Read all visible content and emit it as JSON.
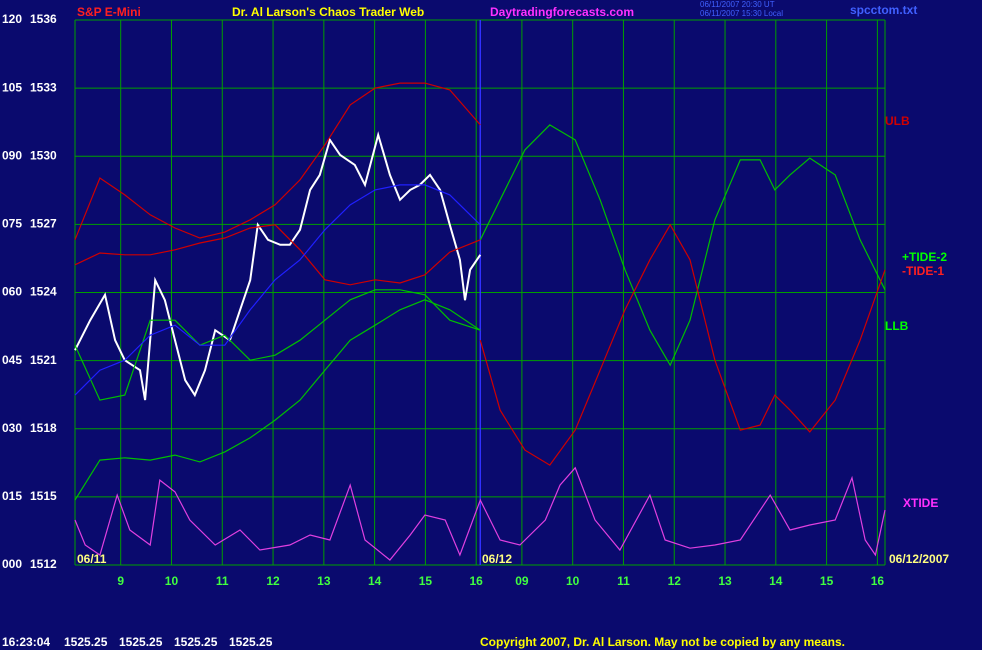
{
  "chart_data": {
    "type": "line",
    "title": "Dr. Al Larson's Chaos Trader Web",
    "instrument": "S&P E-Mini",
    "website": "Daytradingforecasts.com",
    "timestamps": [
      "06/11/2007 20:30 UT",
      "06/11/2007 15:30 Local"
    ],
    "file": "spcctom.txt",
    "day_labels": [
      "06/11",
      "06/12",
      "06/12/2007"
    ],
    "session_break": 16.08,
    "xlim": [
      8.1,
      24.05
    ],
    "xticks": [
      9,
      10,
      11,
      12,
      13,
      14,
      15,
      16,
      {
        "value": 16.9,
        "label": "09"
      },
      {
        "value": 17.9,
        "label": "10"
      },
      {
        "value": 18.9,
        "label": "11"
      },
      {
        "value": 19.9,
        "label": "12"
      },
      {
        "value": 20.9,
        "label": "13"
      },
      {
        "value": 21.9,
        "label": "14"
      },
      {
        "value": 22.9,
        "label": "15"
      },
      {
        "value": 23.9,
        "label": "16"
      }
    ],
    "xtick_labels_day1": [
      "09"
    ],
    "ylim": [
      0,
      120
    ],
    "yticks": [
      {
        "value": 0,
        "label": "000"
      },
      {
        "value": 15,
        "label": "015"
      },
      {
        "value": 30,
        "label": "030"
      },
      {
        "value": 45,
        "label": "045"
      },
      {
        "value": 60,
        "label": "060"
      },
      {
        "value": 75,
        "label": "075"
      },
      {
        "value": 90,
        "label": "090"
      },
      105,
      120
    ],
    "y2lim": [
      1512,
      1536
    ],
    "y2ticks": [
      1512,
      1515,
      1518,
      1521,
      1524,
      1527,
      1530,
      1533,
      1536
    ],
    "grid": true,
    "series": [
      {
        "color": "#ffffff",
        "x": [
          8.1,
          8.4,
          8.69,
          8.89,
          9.08,
          9.38,
          9.48,
          9.68,
          9.87,
          10.07,
          10.27,
          10.46,
          10.66,
          10.86,
          11.15,
          11.35,
          11.55,
          11.7,
          11.9,
          12.14,
          12.33,
          12.53,
          12.73,
          12.92,
          13.12,
          13.32,
          13.61,
          13.81,
          14.07,
          14.3,
          14.5,
          14.7,
          14.89,
          15.09,
          15.29,
          15.48,
          15.68,
          15.78,
          15.88,
          16.08
        ],
        "values": [
          47.3,
          53.9,
          59.5,
          49.5,
          45.1,
          42.9,
          36.3,
          62.7,
          58.3,
          49.5,
          40.7,
          37.4,
          42.9,
          51.7,
          49.5,
          56.1,
          62.7,
          74.9,
          71.6,
          70.5,
          70.5,
          73.8,
          82.6,
          85.9,
          93.6,
          90.3,
          88.1,
          83.7,
          94.7,
          85.9,
          80.4,
          82.6,
          83.7,
          85.9,
          82.6,
          74.9,
          67.2,
          58.3,
          65.0,
          68.3
        ]
      },
      {
        "name": "ULB",
        "color": "#d00000",
        "x": [
          8.1,
          8.59,
          9.08,
          9.58,
          10.07,
          10.56,
          11.05,
          11.55,
          12.04,
          12.53,
          13.02,
          13.52,
          14.01,
          14.5,
          14.99,
          15.48,
          16.08
        ],
        "values": [
          71.6,
          85.2,
          81.5,
          77.1,
          74.2,
          72.0,
          73.3,
          76.0,
          79.3,
          84.8,
          92.5,
          101.3,
          105.0,
          106.1,
          106.1,
          104.6,
          96.9
        ]
      },
      {
        "color": "#d00000",
        "x": [
          8.1,
          8.59,
          9.08,
          9.58,
          10.07,
          10.56,
          11.05,
          11.55,
          12.04,
          12.53,
          13.02,
          13.52,
          14.01,
          14.5,
          14.99,
          15.48,
          16.08
        ],
        "values": [
          66.1,
          68.7,
          68.3,
          68.3,
          69.4,
          70.9,
          72.0,
          74.2,
          74.9,
          69.4,
          62.8,
          61.7,
          62.8,
          62.1,
          63.9,
          68.9,
          71.6
        ]
      },
      {
        "name": "LLB",
        "color": "#00c000",
        "x": [
          8.1,
          8.59,
          9.08,
          9.58,
          10.07,
          10.56,
          11.05,
          11.55,
          12.04,
          12.53,
          13.02,
          13.52,
          14.01,
          14.5,
          14.99,
          15.48,
          16.08
        ],
        "values": [
          14.3,
          23.1,
          23.6,
          23.1,
          24.2,
          22.7,
          24.9,
          28.0,
          31.9,
          36.3,
          42.9,
          49.5,
          52.8,
          56.2,
          58.4,
          56.2,
          51.7
        ]
      },
      {
        "color": "#00c000",
        "x": [
          8.1,
          8.59,
          9.08,
          9.58,
          10.07,
          10.56,
          11.05,
          11.55,
          12.04,
          12.53,
          13.02,
          13.52,
          14.01,
          14.5,
          14.99,
          15.48,
          16.08
        ],
        "values": [
          48.4,
          36.3,
          37.4,
          53.9,
          53.9,
          48.4,
          50.6,
          45.1,
          46.2,
          49.5,
          53.9,
          58.4,
          60.6,
          60.6,
          59.5,
          53.9,
          51.7
        ]
      },
      {
        "color": "#2020ff",
        "x": [
          8.1,
          8.59,
          9.08,
          9.58,
          10.07,
          10.56,
          11.05,
          11.55,
          12.04,
          12.53,
          13.02,
          13.52,
          14.01,
          14.5,
          14.99,
          15.48,
          16.08
        ],
        "values": [
          37.4,
          42.9,
          45.1,
          50.6,
          52.8,
          48.4,
          48.4,
          56.2,
          62.8,
          67.2,
          73.8,
          79.3,
          82.6,
          83.7,
          83.7,
          81.5,
          74.9
        ]
      },
      {
        "name": "+TIDE-2",
        "color": "#00c000",
        "x": [
          16.08,
          16.47,
          16.96,
          17.45,
          17.95,
          18.44,
          18.93,
          19.42,
          19.82,
          20.21,
          20.7,
          21.2,
          21.59,
          21.88,
          22.18,
          22.57,
          23.07,
          23.56,
          24.05
        ],
        "values": [
          71.6,
          80.4,
          91.4,
          96.9,
          93.6,
          80.4,
          65.0,
          51.7,
          44.0,
          53.9,
          76.0,
          89.2,
          89.2,
          82.6,
          85.9,
          89.6,
          85.9,
          71.6,
          60.6
        ]
      },
      {
        "name": "-TIDE-1",
        "color": "#d00000",
        "x": [
          16.08,
          16.47,
          16.96,
          17.45,
          17.95,
          18.44,
          18.93,
          19.42,
          19.82,
          20.21,
          20.7,
          21.2,
          21.59,
          21.88,
          22.18,
          22.57,
          23.07,
          23.56,
          24.05
        ],
        "values": [
          49.5,
          34.1,
          25.3,
          22.0,
          29.7,
          42.9,
          56.2,
          67.2,
          74.9,
          67.2,
          45.1,
          29.7,
          30.8,
          37.4,
          34.1,
          29.3,
          36.3,
          49.5,
          65.0
        ]
      },
      {
        "name": "XTIDE",
        "color": "#e040e0",
        "x": [
          8.1,
          8.3,
          8.59,
          8.93,
          9.18,
          9.58,
          9.77,
          10.07,
          10.36,
          10.86,
          11.35,
          11.74,
          12.33,
          12.73,
          13.12,
          13.52,
          13.81,
          14.3,
          14.7,
          14.99,
          15.39,
          15.68,
          16.08,
          16.47,
          16.86,
          17.36,
          17.65,
          17.95,
          18.34,
          18.83,
          19.42,
          19.72,
          20.21,
          20.7,
          21.2,
          21.79,
          22.18,
          22.57,
          23.07,
          23.4,
          23.66,
          23.86,
          24.05
        ],
        "values": [
          9.9,
          4.4,
          2.2,
          15.4,
          7.7,
          4.4,
          18.7,
          16.1,
          9.9,
          4.4,
          7.7,
          3.3,
          4.4,
          6.6,
          5.5,
          17.6,
          5.5,
          1.1,
          6.6,
          11.0,
          9.9,
          2.2,
          14.3,
          5.5,
          4.4,
          9.9,
          17.6,
          21.4,
          9.9,
          3.3,
          15.4,
          5.5,
          3.7,
          4.4,
          5.5,
          15.4,
          7.7,
          8.8,
          9.9,
          19.2,
          5.5,
          2.2,
          12.1
        ]
      }
    ]
  },
  "status": {
    "time": "16:23:04",
    "prices": [
      1525.25,
      1525.25,
      1525.25,
      1525.25
    ]
  },
  "copyright": "Copyright 2007, Dr. Al Larson. May not be copied by any means."
}
